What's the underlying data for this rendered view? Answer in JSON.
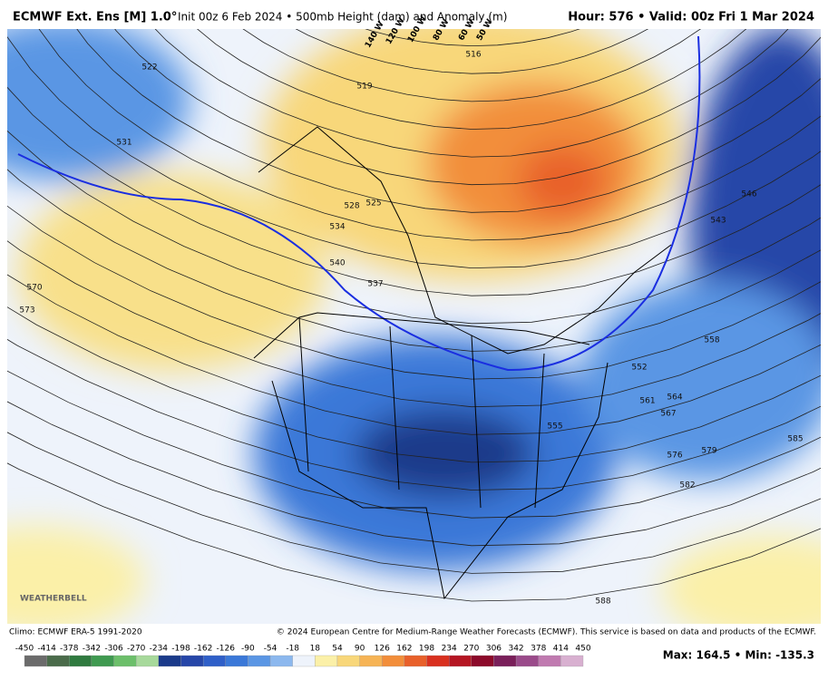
{
  "header": {
    "title": "ECMWF Ext. Ens [M] 1.0°",
    "subtitle": "Init 00z 6 Feb 2024 • 500mb Height (dam) and Anomaly (m)",
    "valid": "Hour: 576 • Valid: 00z Fri 1 Mar 2024"
  },
  "map": {
    "longitude_labels": [
      "140 W",
      "120 W",
      "100 W",
      "80 W",
      "60 W",
      "50 W"
    ],
    "contour_labels": [
      "522",
      "531",
      "570",
      "573",
      "528",
      "525",
      "534",
      "540",
      "537",
      "519",
      "516",
      "543",
      "546",
      "558",
      "552",
      "561",
      "564",
      "567",
      "555",
      "576",
      "579",
      "582",
      "585",
      "588"
    ],
    "logo": "WEATHERBELL"
  },
  "footer": {
    "climo": "Climo: ECMWF ERA-5 1991-2020",
    "copyright": "© 2024 European Centre for Medium-Range Weather Forecasts (ECMWF). This service is based on data and products of the ECMWF.",
    "extremes": "Max: 164.5 • Min: -135.3"
  },
  "colorbar": {
    "labels": [
      "-450",
      "-414",
      "-378",
      "-342",
      "-306",
      "-270",
      "-234",
      "-198",
      "-162",
      "-126",
      "-90",
      "-54",
      "-18",
      "18",
      "54",
      "90",
      "126",
      "162",
      "198",
      "234",
      "270",
      "306",
      "342",
      "378",
      "414",
      "450"
    ],
    "colors": [
      "#6b6b6b",
      "#4a6b4a",
      "#2f7a3f",
      "#3f9a50",
      "#6cbf6a",
      "#a7d99b",
      "#1a3a8a",
      "#2646a8",
      "#2f5fc8",
      "#3a78d8",
      "#5a96e4",
      "#8cb8ee",
      "#eef3fb",
      "#fbf0a8",
      "#f8d77a",
      "#f6b455",
      "#f28e3a",
      "#e8602a",
      "#d9301f",
      "#b51522",
      "#8c0a2a",
      "#7a1f5a",
      "#9a4a8a",
      "#c07ab0",
      "#d8b0d0"
    ]
  }
}
